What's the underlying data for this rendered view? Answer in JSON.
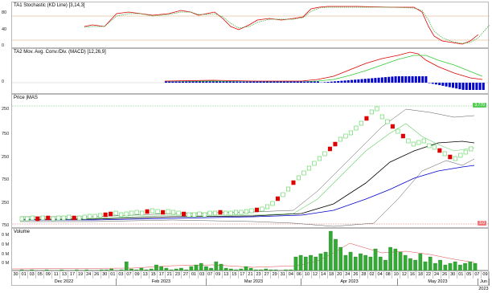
{
  "panes": {
    "stoch": {
      "title": "TA1 Stochastic (KD Line) [3,14,3]",
      "labels": [
        "80",
        "40",
        "0"
      ]
    },
    "macd": {
      "title": "TA2 Mov. Avg. Conv./Div. (MACD) [12,26,9]",
      "labels": [
        "0"
      ]
    },
    "price": {
      "title": "Price |MAS",
      "labels": [
        "250",
        "750",
        "250",
        "750",
        "250",
        "750"
      ],
      "tag_top": "3.770",
      "tag_bottom": "3.0"
    },
    "volume": {
      "title": "Volume",
      "labels": [
        "0 M",
        "0 M",
        "0 M",
        "0 M"
      ]
    }
  },
  "xaxis": {
    "days": [
      "30",
      "01",
      "03",
      "05",
      "09",
      "11",
      "13",
      "17",
      "19",
      "24",
      "26",
      "30",
      "01",
      "03",
      "07",
      "09",
      "13",
      "15",
      "17",
      "21",
      "23",
      "27",
      "01",
      "03",
      "07",
      "09",
      "13",
      "15",
      "17",
      "21",
      "23",
      "27",
      "29",
      "31",
      "04",
      "06",
      "10",
      "12",
      "14",
      "18",
      "20",
      "24",
      "26",
      "28",
      "02",
      "04",
      "08",
      "10",
      "12",
      "16",
      "18",
      "22",
      "24",
      "26",
      "30",
      "01",
      "05",
      "07",
      "09"
    ],
    "months": [
      "Dec 2022",
      "Feb 2023",
      "Mar 2023",
      "Apr 2023",
      "May 2023",
      "Jun 2023"
    ]
  },
  "colors": {
    "up": "#33cc33",
    "down": "#dd0000",
    "macd_bar": "#0000cc",
    "ma_short": "#66cc66",
    "ma_long": "#000000",
    "ma_mid": "#0000cc"
  }
}
